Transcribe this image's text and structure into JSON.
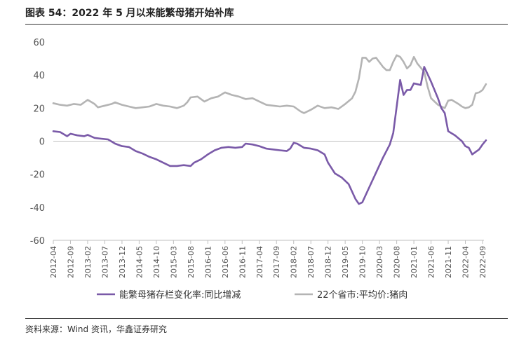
{
  "title": "图表 54：2022 年 5 月以来能繁母猪开始补库",
  "source": "资料来源：Wind 资讯，华鑫证券研究",
  "chart_data": {
    "type": "line",
    "ylim": [
      -60,
      60
    ],
    "yticks": [
      -60,
      -40,
      -20,
      0,
      20,
      40,
      60
    ],
    "x_range": [
      "2012-04",
      "2022-09"
    ],
    "xticks": [
      "2012-04",
      "2012-09",
      "2013-02",
      "2013-07",
      "2013-12",
      "2014-05",
      "2014-10",
      "2015-03",
      "2015-08",
      "2016-01",
      "2016-06",
      "2016-11",
      "2017-04",
      "2017-09",
      "2018-02",
      "2018-07",
      "2018-12",
      "2019-05",
      "2019-10",
      "2020-03",
      "2020-08",
      "2021-01",
      "2021-06",
      "2021-11",
      "2022-04",
      "2022-09"
    ],
    "grid": false,
    "legend": "bottom",
    "series": [
      {
        "name": "能繁母猪存栏变化率:同比增减",
        "color": "#7a5aa8",
        "points": [
          [
            "2012-04",
            6
          ],
          [
            "2012-06",
            5.5
          ],
          [
            "2012-08",
            3
          ],
          [
            "2012-09",
            4.5
          ],
          [
            "2012-11",
            3.5
          ],
          [
            "2013-01",
            3
          ],
          [
            "2013-02",
            3.8
          ],
          [
            "2013-04",
            2
          ],
          [
            "2013-06",
            1.5
          ],
          [
            "2013-08",
            1
          ],
          [
            "2013-10",
            -1.5
          ],
          [
            "2013-12",
            -3
          ],
          [
            "2014-02",
            -3.5
          ],
          [
            "2014-04",
            -6
          ],
          [
            "2014-06",
            -7.5
          ],
          [
            "2014-08",
            -9.5
          ],
          [
            "2014-10",
            -11
          ],
          [
            "2014-12",
            -13
          ],
          [
            "2015-02",
            -15
          ],
          [
            "2015-04",
            -15
          ],
          [
            "2015-06",
            -14.5
          ],
          [
            "2015-08",
            -15
          ],
          [
            "2015-09",
            -13
          ],
          [
            "2015-11",
            -11
          ],
          [
            "2016-01",
            -8
          ],
          [
            "2016-03",
            -5.5
          ],
          [
            "2016-05",
            -4
          ],
          [
            "2016-07",
            -3.5
          ],
          [
            "2016-09",
            -4
          ],
          [
            "2016-11",
            -3.5
          ],
          [
            "2016-12",
            -1.5
          ],
          [
            "2017-02",
            -2
          ],
          [
            "2017-04",
            -3
          ],
          [
            "2017-06",
            -4.5
          ],
          [
            "2017-08",
            -5
          ],
          [
            "2017-10",
            -5.5
          ],
          [
            "2017-12",
            -6
          ],
          [
            "2018-01",
            -4.5
          ],
          [
            "2018-02",
            -1
          ],
          [
            "2018-03",
            -1.5
          ],
          [
            "2018-05",
            -4
          ],
          [
            "2018-07",
            -4.5
          ],
          [
            "2018-09",
            -5.5
          ],
          [
            "2018-11",
            -8
          ],
          [
            "2018-12",
            -13
          ],
          [
            "2019-02",
            -19.5
          ],
          [
            "2019-04",
            -22
          ],
          [
            "2019-06",
            -26
          ],
          [
            "2019-08",
            -35
          ],
          [
            "2019-09",
            -38
          ],
          [
            "2019-10",
            -37
          ],
          [
            "2019-12",
            -28
          ],
          [
            "2020-02",
            -19
          ],
          [
            "2020-04",
            -10
          ],
          [
            "2020-06",
            -2
          ],
          [
            "2020-07",
            5
          ],
          [
            "2020-09",
            37
          ],
          [
            "2020-10",
            28
          ],
          [
            "2020-11",
            31
          ],
          [
            "2020-12",
            31
          ],
          [
            "2021-01",
            35
          ],
          [
            "2021-03",
            34
          ],
          [
            "2021-04",
            45
          ],
          [
            "2021-06",
            36
          ],
          [
            "2021-08",
            26
          ],
          [
            "2021-09",
            20
          ],
          [
            "2021-10",
            17
          ],
          [
            "2021-11",
            6
          ],
          [
            "2022-01",
            3.5
          ],
          [
            "2022-03",
            0
          ],
          [
            "2022-04",
            -3
          ],
          [
            "2022-05",
            -4
          ],
          [
            "2022-06",
            -8
          ],
          [
            "2022-07",
            -6.5
          ],
          [
            "2022-08",
            -5
          ],
          [
            "2022-09",
            -2
          ],
          [
            "2022-10",
            0.5
          ]
        ]
      },
      {
        "name": "22个省市:平均价:猪肉",
        "color": "#b4b4b4",
        "points": [
          [
            "2012-04",
            23
          ],
          [
            "2012-06",
            22
          ],
          [
            "2012-08",
            21.5
          ],
          [
            "2012-10",
            22.5
          ],
          [
            "2012-12",
            22
          ],
          [
            "2013-02",
            25
          ],
          [
            "2013-04",
            22.5
          ],
          [
            "2013-05",
            20.5
          ],
          [
            "2013-07",
            21.5
          ],
          [
            "2013-09",
            22.5
          ],
          [
            "2013-10",
            23.5
          ],
          [
            "2013-12",
            22
          ],
          [
            "2014-02",
            21
          ],
          [
            "2014-04",
            20
          ],
          [
            "2014-06",
            20.5
          ],
          [
            "2014-08",
            21
          ],
          [
            "2014-10",
            22.5
          ],
          [
            "2014-12",
            21.5
          ],
          [
            "2015-02",
            21
          ],
          [
            "2015-04",
            20
          ],
          [
            "2015-06",
            21.5
          ],
          [
            "2015-07",
            23.5
          ],
          [
            "2015-08",
            26.5
          ],
          [
            "2015-10",
            27
          ],
          [
            "2015-12",
            24
          ],
          [
            "2016-02",
            26
          ],
          [
            "2016-04",
            27
          ],
          [
            "2016-06",
            29.5
          ],
          [
            "2016-08",
            28
          ],
          [
            "2016-10",
            27
          ],
          [
            "2016-12",
            25.5
          ],
          [
            "2017-02",
            26
          ],
          [
            "2017-04",
            24
          ],
          [
            "2017-06",
            22
          ],
          [
            "2017-08",
            21.5
          ],
          [
            "2017-10",
            21
          ],
          [
            "2017-12",
            21.5
          ],
          [
            "2018-02",
            21
          ],
          [
            "2018-04",
            18
          ],
          [
            "2018-05",
            17
          ],
          [
            "2018-07",
            19
          ],
          [
            "2018-09",
            21.5
          ],
          [
            "2018-11",
            20
          ],
          [
            "2019-01",
            20.5
          ],
          [
            "2019-03",
            19.5
          ],
          [
            "2019-05",
            22.5
          ],
          [
            "2019-07",
            26
          ],
          [
            "2019-08",
            30
          ],
          [
            "2019-09",
            38
          ],
          [
            "2019-10",
            50.5
          ],
          [
            "2019-11",
            50.5
          ],
          [
            "2019-12",
            48
          ],
          [
            "2020-01",
            50
          ],
          [
            "2020-02",
            50.5
          ],
          [
            "2020-04",
            45
          ],
          [
            "2020-05",
            43
          ],
          [
            "2020-06",
            43
          ],
          [
            "2020-07",
            48
          ],
          [
            "2020-08",
            52
          ],
          [
            "2020-09",
            51
          ],
          [
            "2020-10",
            48
          ],
          [
            "2020-11",
            44
          ],
          [
            "2020-12",
            46
          ],
          [
            "2021-01",
            51
          ],
          [
            "2021-02",
            47
          ],
          [
            "2021-04",
            42
          ],
          [
            "2021-05",
            33
          ],
          [
            "2021-06",
            26
          ],
          [
            "2021-07",
            24
          ],
          [
            "2021-08",
            22
          ],
          [
            "2021-09",
            21
          ],
          [
            "2021-10",
            20
          ],
          [
            "2021-11",
            24.5
          ],
          [
            "2021-12",
            25
          ],
          [
            "2022-02",
            22.5
          ],
          [
            "2022-03",
            21
          ],
          [
            "2022-04",
            20
          ],
          [
            "2022-05",
            20.5
          ],
          [
            "2022-06",
            22
          ],
          [
            "2022-07",
            29
          ],
          [
            "2022-08",
            29.5
          ],
          [
            "2022-09",
            31
          ],
          [
            "2022-10",
            34.5
          ]
        ]
      }
    ]
  }
}
